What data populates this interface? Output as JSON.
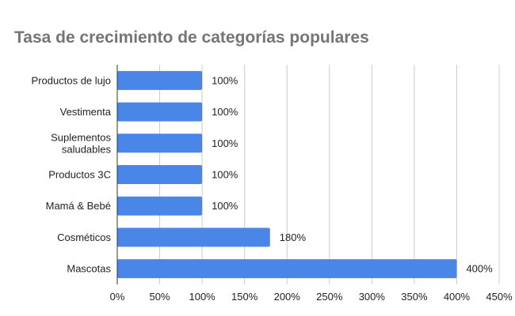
{
  "chart_data": {
    "type": "bar",
    "orientation": "horizontal",
    "title": "Tasa de crecimiento de categorías populares",
    "categories": [
      [
        "Productos de lujo"
      ],
      [
        "Vestimenta"
      ],
      [
        "Suplementos",
        "saludables"
      ],
      [
        "Productos 3C"
      ],
      [
        "Mamá & Bebé"
      ],
      [
        "Cosméticos"
      ],
      [
        "Mascotas"
      ]
    ],
    "values": [
      100,
      100,
      100,
      100,
      100,
      180,
      400
    ],
    "data_labels": [
      "100%",
      "100%",
      "100%",
      "100%",
      "100%",
      "180%",
      "400%"
    ],
    "xlim": [
      0,
      450
    ],
    "xticks": [
      0,
      50,
      100,
      150,
      200,
      250,
      300,
      350,
      400,
      450
    ],
    "xtick_labels": [
      "0%",
      "50%",
      "100%",
      "150%",
      "200%",
      "250%",
      "300%",
      "350%",
      "400%",
      "450%"
    ],
    "grid": "vertical",
    "legend": "none",
    "colors": {
      "bar": "#4a86e8",
      "grid": "#cccccc",
      "axis": "#333333",
      "title": "#757575"
    }
  }
}
